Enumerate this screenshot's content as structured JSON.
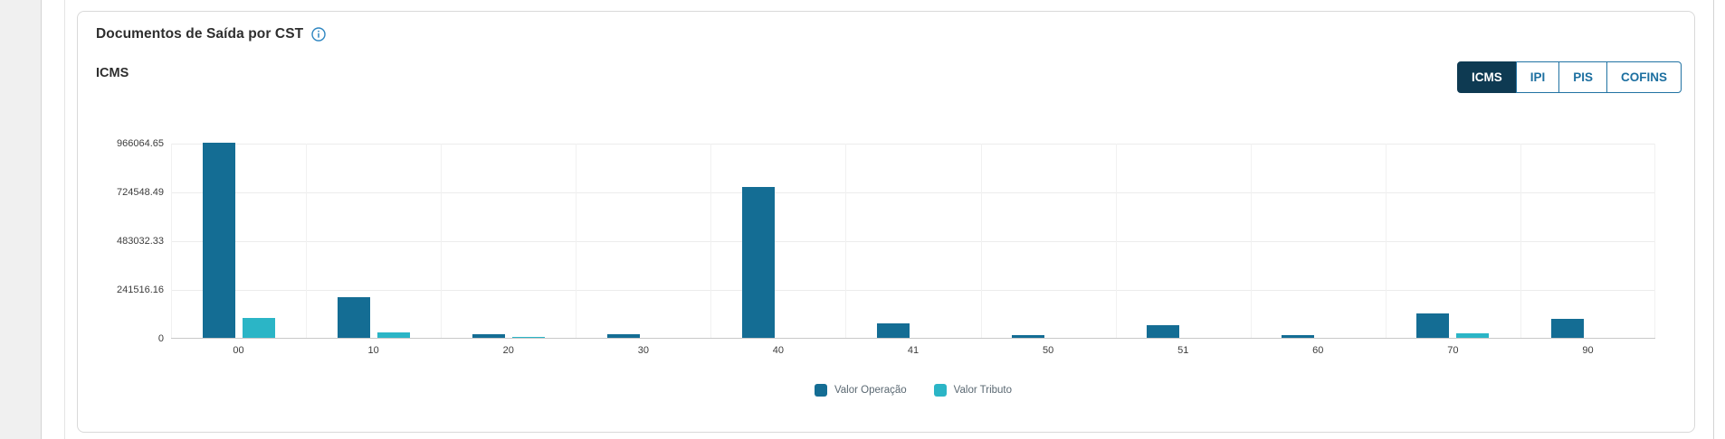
{
  "panel": {
    "title": "Documentos de Saída por CST",
    "subtitle": "ICMS"
  },
  "tabs": [
    {
      "id": "icms",
      "label": "ICMS",
      "selected": true
    },
    {
      "id": "ipi",
      "label": "IPI",
      "selected": false
    },
    {
      "id": "pis",
      "label": "PIS",
      "selected": false
    },
    {
      "id": "cofins",
      "label": "COFINS",
      "selected": false
    }
  ],
  "chart_data": {
    "type": "bar",
    "title": "Documentos de Saída por CST",
    "subtitle": "ICMS",
    "categories": [
      "00",
      "10",
      "20",
      "30",
      "40",
      "41",
      "50",
      "51",
      "60",
      "70",
      "90"
    ],
    "series": [
      {
        "name": "Valor Operação",
        "color": "#146d94",
        "values": [
          966064.65,
          201000,
          19000,
          18000,
          748000,
          73000,
          12000,
          64000,
          12000,
          120000,
          95000
        ]
      },
      {
        "name": "Valor Tributo",
        "color": "#2bb5c6",
        "values": [
          100000,
          28000,
          5000,
          0,
          0,
          0,
          0,
          0,
          0,
          22000,
          0
        ]
      }
    ],
    "ylim": [
      0,
      966064.65
    ],
    "yticks": [
      0,
      241516.16,
      483032.33,
      724548.49,
      966064.65
    ],
    "ytick_labels": [
      "0",
      "241516.16",
      "483032.33",
      "724548.49",
      "966064.65"
    ],
    "xlabel": "",
    "ylabel": "",
    "grid": true,
    "legend_position": "bottom"
  },
  "colors": {
    "bar_primary": "#146d94",
    "bar_secondary": "#2bb5c6",
    "tab_selected_bg": "#0e3a52",
    "tab_text": "#1c6fa0",
    "tab_border": "#2173a3",
    "info_icon": "#2e86c1",
    "card_border": "#d9d9d9",
    "gridline": "#ececec",
    "axis_text": "#3c3c3c",
    "legend_text": "#5a6872"
  }
}
